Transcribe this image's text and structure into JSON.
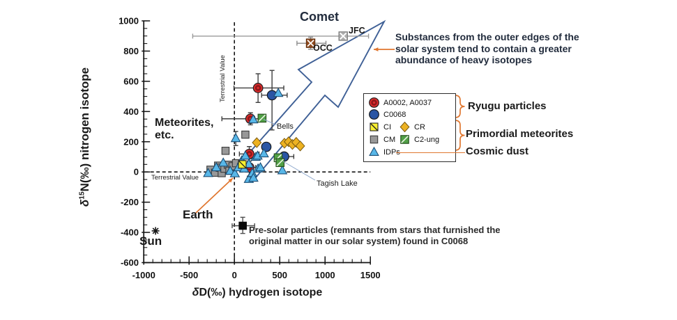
{
  "axes": {
    "x_title": {
      "delta": "δ",
      "rest": "D(‰) hydrogen isotope"
    },
    "y_title": {
      "delta": "δ",
      "sup": "15",
      "rest": "N(‰) nitrogen isotope"
    }
  },
  "annotations": {
    "comet": "Comet",
    "jfc": "JFC",
    "occ": "OCC",
    "outer_note_line1": "Substances from the outer edges of the",
    "outer_note_line2": "solar system tend to contain a greater",
    "outer_note_line3": "abundance of heavy isotopes",
    "meteorites_line1": "Meteorites,",
    "meteorites_line2": "etc.",
    "bells": "Bells",
    "tagish": "Tagish Lake",
    "earth": "Earth",
    "sun": "Sun",
    "terrestrial_vertical": "Terrestrial Value",
    "terrestrial_horizontal": "Terrestrial Value",
    "presolar_line1": "Pre-solar particles (remnants from stars that furnished the",
    "presolar_line2": "original matter in our solar system) found in C0068"
  },
  "legend": {
    "items": {
      "ryugu_red": "A0002, A0037",
      "ryugu_blue": "C0068",
      "ci": "CI",
      "cr": "CR",
      "cm": "CM",
      "c2ung": "C2-ung",
      "idps": "IDPs"
    },
    "groups": {
      "ryugu": "Ryugu particles",
      "primordial": "Primordial meteorites",
      "cosmic": "Cosmic dust"
    }
  },
  "colors": {
    "red": "#d92b2b",
    "red_inner": "#8c1619",
    "blue": "#2a55a4",
    "yellow": "#f8ef2f",
    "gold": "#edb222",
    "gray": "#989898",
    "green": "#51a046",
    "sky": "#58b7e8",
    "black": "#0a0a0a",
    "jfc_gray": "#adadad",
    "occ_brown": "#8e4a1f",
    "orange": "#e0762f",
    "arrow_blue": "#3f6096",
    "leader_blue": "#8fa8cc",
    "axis": "#141414",
    "errbar": "#3d3d3d"
  },
  "chart_data": {
    "type": "scatter",
    "title": "",
    "xlabel": "δD(‰) hydrogen isotope",
    "ylabel": "δ15N(‰) nitrogen isotope",
    "xlim": [
      -1000,
      1500
    ],
    "ylim": [
      -600,
      1000
    ],
    "x_tick_values": [
      -1000,
      -500,
      0,
      500,
      1000,
      1500
    ],
    "y_tick_values": [
      1000,
      800,
      600,
      400,
      200,
      0,
      -200,
      -400,
      -600
    ],
    "x_minor_step": 100,
    "y_minor_step": 50,
    "grid": false,
    "legend_position": "right-inside",
    "reference_lines": {
      "x": 0,
      "y": 0,
      "label": "Terrestrial Value"
    },
    "series": [
      {
        "name": "A0002, A0037",
        "group": "Ryugu particles",
        "marker": "red_circle",
        "color": "#d92b2b",
        "points": [
          {
            "x": 261,
            "y": 556,
            "xmin": -5,
            "xmax": 545,
            "ymin": 460,
            "ymax": 650
          },
          {
            "x": 177,
            "y": 352,
            "xmin": -138,
            "xmax": 311,
            "ymin": 312,
            "ymax": 392
          },
          {
            "x": 164,
            "y": 119,
            "xmin": 55,
            "xmax": 272,
            "ymin": 72,
            "ymax": 168
          },
          {
            "x": 164,
            "y": 30,
            "xmin": 95,
            "xmax": 235,
            "ymin": -28,
            "ymax": 88
          }
        ]
      },
      {
        "name": "C0068",
        "group": "Ryugu particles",
        "marker": "blue_circle",
        "color": "#2a55a4",
        "points": [
          {
            "x": 415,
            "y": 508,
            "xmin": 300,
            "xmax": 582,
            "ymin": 278,
            "ymax": 672
          },
          {
            "x": 352,
            "y": 166
          },
          {
            "x": 548,
            "y": 102,
            "xmin": 462,
            "xmax": 655
          }
        ]
      },
      {
        "name": "CM",
        "group": "Primordial meteorites",
        "marker": "gray_square",
        "color": "#989898",
        "points": [
          {
            "x": -264,
            "y": 15
          },
          {
            "x": -213,
            "y": -5
          },
          {
            "x": -180,
            "y": 42
          },
          {
            "x": -162,
            "y": 28
          },
          {
            "x": -140,
            "y": -8
          },
          {
            "x": -110,
            "y": 22
          },
          {
            "x": -98,
            "y": 140
          },
          {
            "x": -72,
            "y": 48
          },
          {
            "x": -55,
            "y": 8
          },
          {
            "x": -21,
            "y": 38
          },
          {
            "x": 18,
            "y": 58
          },
          {
            "x": 121,
            "y": 247
          }
        ]
      },
      {
        "name": "IDPs",
        "group": "Cosmic dust",
        "marker": "sky_triangle",
        "color": "#58b7e8",
        "points": [
          {
            "x": 15,
            "y": 223,
            "ymin": 175,
            "ymax": 268
          },
          {
            "x": -290,
            "y": -8
          },
          {
            "x": -200,
            "y": 30
          },
          {
            "x": -123,
            "y": 61
          },
          {
            "x": -46,
            "y": 7
          },
          {
            "x": 5,
            "y": -10
          },
          {
            "x": 44,
            "y": 30
          },
          {
            "x": 82,
            "y": 76
          },
          {
            "x": 108,
            "y": 22
          },
          {
            "x": 121,
            "y": 107
          },
          {
            "x": 159,
            "y": 53
          },
          {
            "x": 159,
            "y": -47
          },
          {
            "x": 198,
            "y": -8
          },
          {
            "x": 210,
            "y": -39
          },
          {
            "x": 236,
            "y": 99
          },
          {
            "x": 256,
            "y": 107
          },
          {
            "x": 261,
            "y": 22
          },
          {
            "x": 287,
            "y": 30
          },
          {
            "x": 325,
            "y": 122
          },
          {
            "x": 208,
            "y": 347
          },
          {
            "x": 484,
            "y": 522
          },
          {
            "x": 529,
            "y": 10
          }
        ]
      },
      {
        "name": "CI",
        "group": "Primordial meteorites",
        "marker": "yellow_square_diag",
        "color": "#f8ef2f",
        "points": [
          {
            "x": 87,
            "y": 50
          }
        ]
      },
      {
        "name": "CR",
        "group": "Primordial meteorites",
        "marker": "gold_diamond",
        "color": "#edb222",
        "points": [
          {
            "x": 247,
            "y": 194
          },
          {
            "x": 552,
            "y": 190
          },
          {
            "x": 598,
            "y": 200
          },
          {
            "x": 640,
            "y": 182
          },
          {
            "x": 682,
            "y": 196
          },
          {
            "x": 726,
            "y": 172
          }
        ]
      },
      {
        "name": "C2-ung",
        "group": "Primordial meteorites",
        "marker": "green_square_diag",
        "color": "#51a046",
        "points": [
          {
            "x": 305,
            "y": 356
          },
          {
            "x": 483,
            "y": 94
          },
          {
            "x": 504,
            "y": 62
          }
        ]
      },
      {
        "name": "JFC",
        "group": "Comet",
        "marker": "gray_square_x",
        "color": "#adadad",
        "err_color": "#9a9a9a",
        "points": [
          {
            "x": 1200,
            "y": 899,
            "xmin": -460,
            "xmax": 1480
          }
        ]
      },
      {
        "name": "OCC",
        "group": "Comet",
        "marker": "brown_square_x",
        "color": "#8e4a1f",
        "err_color": "#8a8a8a",
        "points": [
          {
            "x": 841,
            "y": 852,
            "xmin": 690,
            "xmax": 1010,
            "ymin": 812,
            "ymax": 892
          }
        ]
      },
      {
        "name": "Pre-solar particles found in C0068",
        "group": "Pre-solar",
        "marker": "black_square",
        "color": "#0a0a0a",
        "err_color": "#4d4d4d",
        "points": [
          {
            "x": 92,
            "y": -356,
            "xmin": -25,
            "xmax": 223,
            "ymin": -407,
            "ymax": -300
          }
        ]
      },
      {
        "name": "Sun",
        "group": "Sun",
        "marker": "asterisk",
        "color": "#1a1a1a",
        "points": [
          {
            "x": -870,
            "y": -390
          }
        ]
      }
    ]
  }
}
